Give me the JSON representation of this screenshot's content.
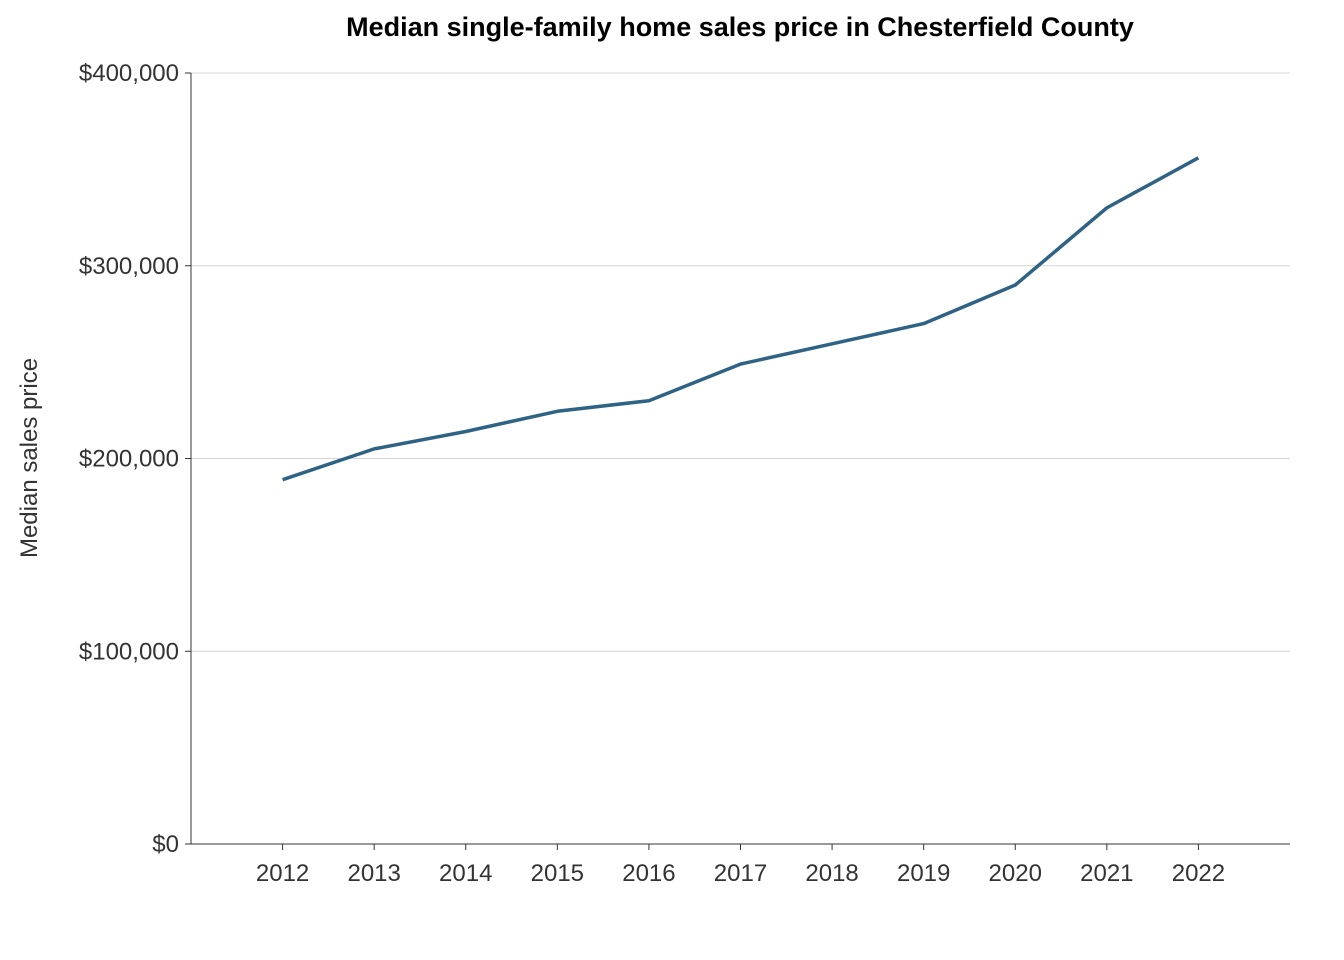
{
  "chart_data": {
    "type": "line",
    "title": "Median single-family home sales price in Chesterfield County",
    "xlabel": "",
    "ylabel": "Median sales price",
    "x": [
      2012,
      2013,
      2014,
      2015,
      2016,
      2017,
      2018,
      2019,
      2020,
      2021,
      2022
    ],
    "x_tick_labels": [
      "2012",
      "2013",
      "2014",
      "2015",
      "2016",
      "2017",
      "2018",
      "2019",
      "2020",
      "2021",
      "2022"
    ],
    "xlim": [
      2011,
      2023
    ],
    "y_ticks": [
      0,
      100000,
      200000,
      300000,
      400000
    ],
    "y_tick_labels": [
      "$0",
      "$100,000",
      "$200,000",
      "$300,000",
      "$400,000"
    ],
    "ylim": [
      0,
      400000
    ],
    "grid": "horizontal major gridlines",
    "legend": "none",
    "series": [
      {
        "values": [
          189000,
          205000,
          214000,
          224500,
          230000,
          249000,
          259500,
          270000,
          290000,
          330000,
          356000
        ],
        "color": "#2e6385"
      }
    ]
  }
}
